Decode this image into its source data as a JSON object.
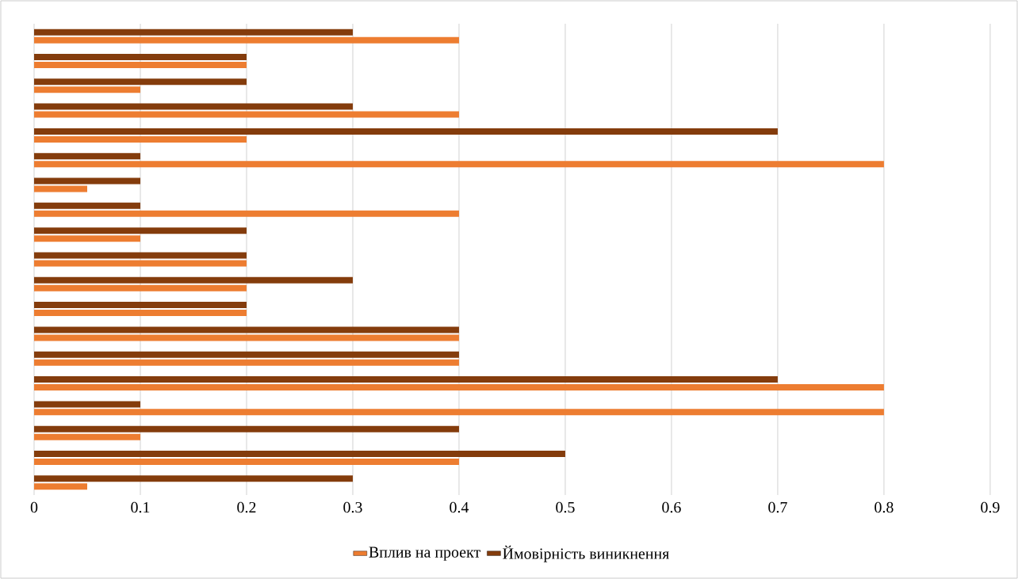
{
  "chart_data": {
    "type": "bar",
    "orientation": "horizontal",
    "categories": [
      null,
      null,
      null,
      null,
      null,
      null,
      null,
      null,
      null,
      null,
      null,
      null,
      null,
      null,
      null,
      null,
      null,
      null,
      null
    ],
    "series": [
      {
        "name": "Вплив на проект",
        "color": "#ed7d31",
        "values": [
          0.4,
          0.2,
          0.1,
          0.4,
          0.2,
          0.8,
          0.05,
          0.4,
          0.1,
          0.2,
          0.2,
          0.2,
          0.4,
          0.4,
          0.8,
          0.8,
          0.1,
          0.4,
          0.05
        ]
      },
      {
        "name": "Ймовірність виникнення",
        "color": "#843c0c",
        "values": [
          0.3,
          0.2,
          0.2,
          0.3,
          0.7,
          0.1,
          0.1,
          0.1,
          0.2,
          0.2,
          0.3,
          0.2,
          0.4,
          0.4,
          0.7,
          0.1,
          0.4,
          0.5,
          0.3
        ]
      }
    ],
    "xlim": [
      0,
      0.9
    ],
    "xticks": [
      0,
      0.1,
      0.2,
      0.3,
      0.4,
      0.5,
      0.6,
      0.7,
      0.8,
      0.9
    ],
    "grid": "x",
    "legend": "bottom"
  }
}
